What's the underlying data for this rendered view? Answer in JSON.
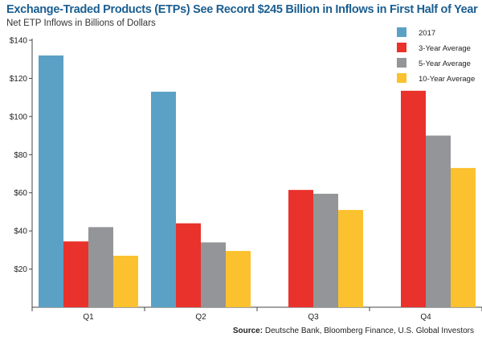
{
  "title": "Exchange-Traded Products (ETPs) See Record $245 Billion in Inflows in First Half of Year",
  "subtitle": "Net ETP Inflows in Billions of Dollars",
  "source_label": "Source:",
  "source_text": "Deutsche Bank, Bloomberg Finance, U.S. Global Investors",
  "chart_data": {
    "type": "bar",
    "categories": [
      "Q1",
      "Q2",
      "Q3",
      "Q4"
    ],
    "y_ticks": [
      "$20",
      "$40",
      "$60",
      "$80",
      "$100",
      "$120",
      "$140"
    ],
    "ylim": [
      0,
      140
    ],
    "grid": false,
    "legend_position": "top-right",
    "series": [
      {
        "name": "2017",
        "color": "#5ba1c6",
        "values": [
          132,
          113,
          null,
          null
        ]
      },
      {
        "name": "3-Year Average",
        "color": "#e8322b",
        "values": [
          34.5,
          44,
          61.5,
          113.5
        ]
      },
      {
        "name": "5-Year Average",
        "color": "#939598",
        "values": [
          42,
          34,
          59.5,
          90
        ]
      },
      {
        "name": "10-Year Average",
        "color": "#fbc12e",
        "values": [
          27,
          29.5,
          51,
          73
        ]
      }
    ]
  }
}
